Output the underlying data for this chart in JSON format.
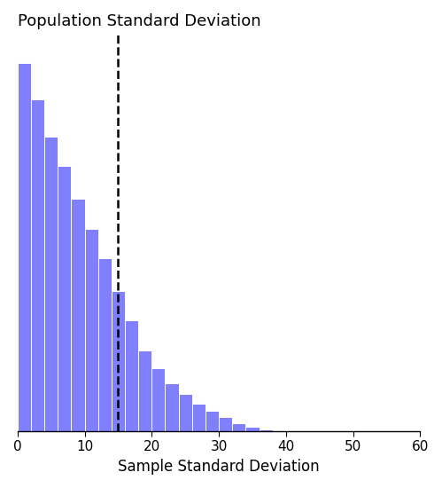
{
  "title": "Population Standard Deviation",
  "xlabel": "Sample Standard Deviation",
  "bar_color": "#8080ff",
  "bar_edgecolor": "#ffffff",
  "dashed_line_x": 15,
  "xlim": [
    0,
    60
  ],
  "xticks": [
    0,
    10,
    20,
    30,
    40,
    50,
    60
  ],
  "bin_width": 2,
  "bar_heights": [
    1.0,
    0.9,
    0.8,
    0.72,
    0.63,
    0.55,
    0.47,
    0.38,
    0.3,
    0.22,
    0.17,
    0.13,
    0.1,
    0.075,
    0.055,
    0.038,
    0.022,
    0.013,
    0.006
  ],
  "title_fontsize": 13,
  "xlabel_fontsize": 12,
  "tick_fontsize": 11
}
